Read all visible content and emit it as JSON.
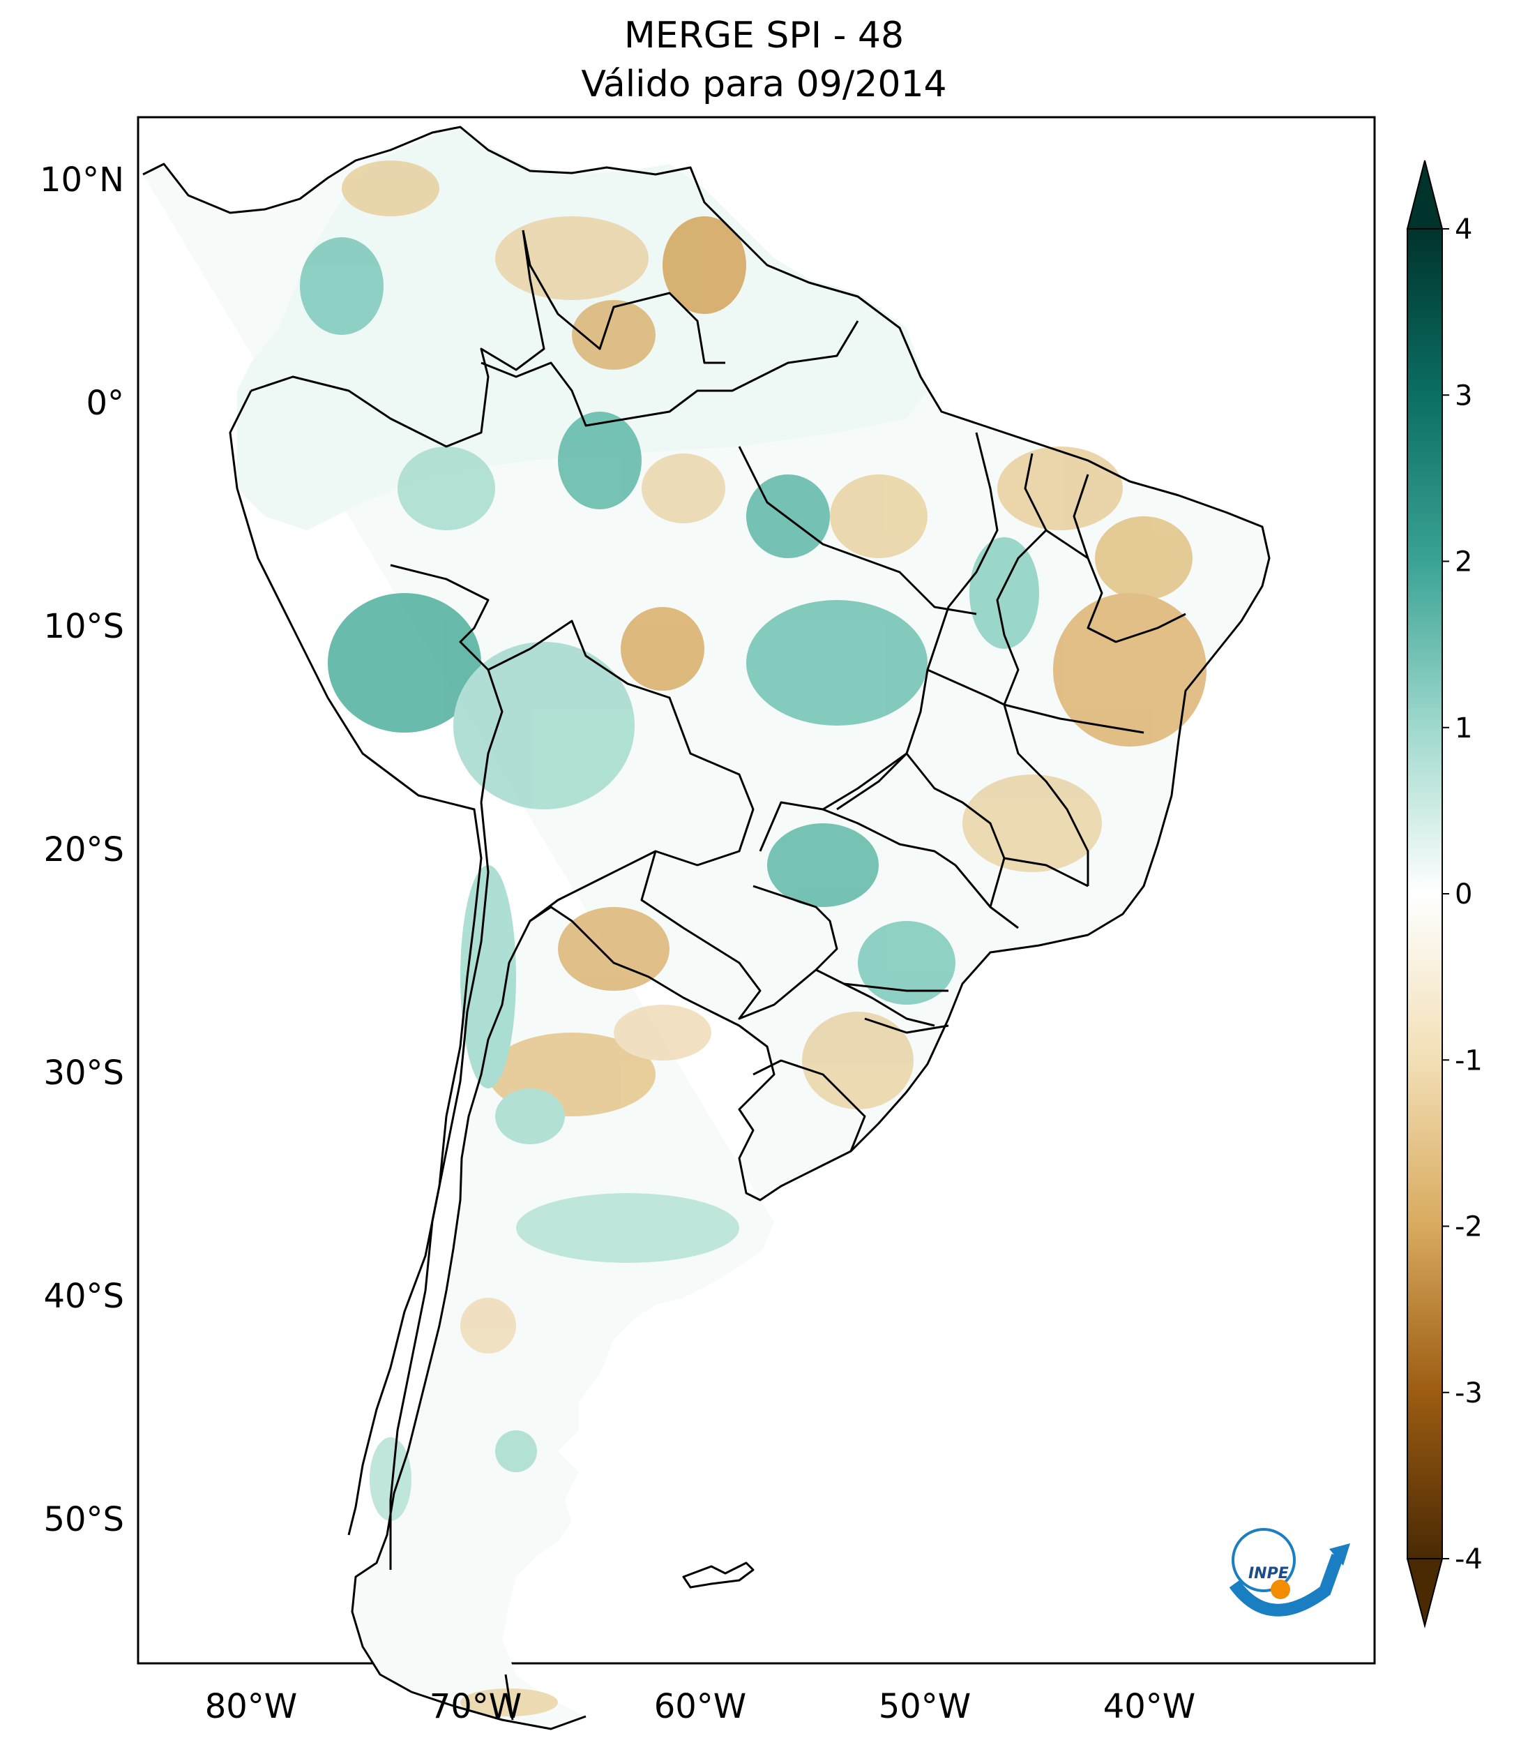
{
  "title": {
    "line1": "MERGE   SPI - 48",
    "line2": "Válido para 09/2014"
  },
  "map": {
    "extent": {
      "lon_min": -85,
      "lon_max": -30,
      "lat_min": -56,
      "lat_max": 13
    },
    "lat_ticks": [
      {
        "value": 10,
        "label": "10°N"
      },
      {
        "value": 0,
        "label": "0°"
      },
      {
        "value": -10,
        "label": "10°S"
      },
      {
        "value": -20,
        "label": "20°S"
      },
      {
        "value": -30,
        "label": "30°S"
      },
      {
        "value": -40,
        "label": "40°S"
      },
      {
        "value": -50,
        "label": "50°S"
      }
    ],
    "lon_ticks": [
      {
        "value": -80,
        "label": "80°W"
      },
      {
        "value": -70,
        "label": "70°W"
      },
      {
        "value": -60,
        "label": "60°W"
      },
      {
        "value": -50,
        "label": "50°W"
      },
      {
        "value": -40,
        "label": "40°W"
      }
    ],
    "logo_text": "INPE",
    "colors": {
      "wet_strong": "#1e8a7a",
      "wet_light": "#bfe7df",
      "dry_light": "#ecd9b0",
      "dry_strong": "#c99a4d",
      "border": "#000000"
    }
  },
  "colorbar": {
    "min": -4,
    "max": 4,
    "ticks": [
      {
        "value": 4,
        "label": "4"
      },
      {
        "value": 3,
        "label": "3"
      },
      {
        "value": 2,
        "label": "2"
      },
      {
        "value": 1,
        "label": "1"
      },
      {
        "value": 0,
        "label": "0"
      },
      {
        "value": -1,
        "label": "-1"
      },
      {
        "value": -2,
        "label": "-2"
      },
      {
        "value": -3,
        "label": "-3"
      },
      {
        "value": -4,
        "label": "-4"
      }
    ],
    "colors": [
      "#00332c",
      "#0b6f63",
      "#3aa394",
      "#9fd9cd",
      "#ffffff",
      "#f2dfb5",
      "#d8aa5e",
      "#9c5c12",
      "#4a2a03"
    ]
  }
}
